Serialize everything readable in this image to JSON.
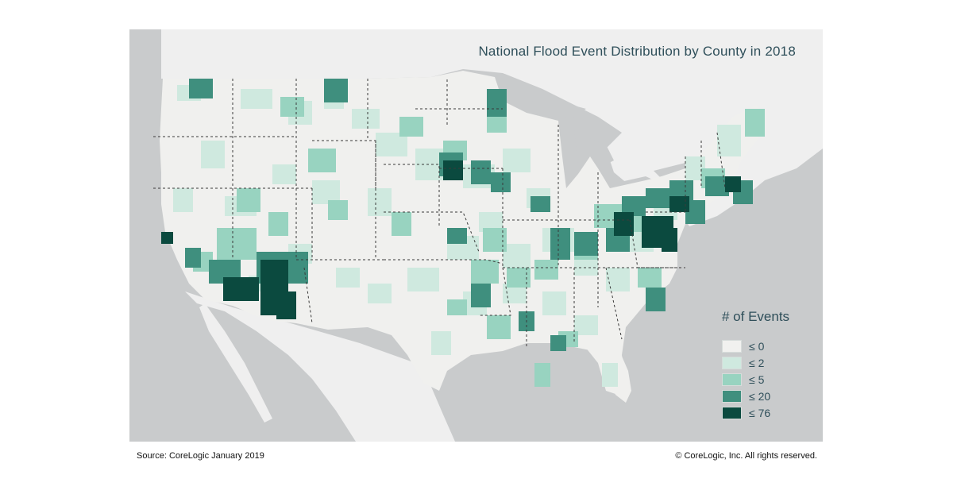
{
  "map": {
    "title": "National Flood Event Distribution by County in 2018",
    "colors": {
      "water": "#c9cbcc",
      "land_outside": "#efefef",
      "land_us": "#f0f0ee",
      "state_border": "#3a3a3a",
      "county_border": "#ffffff"
    }
  },
  "legend": {
    "title": "# of Events",
    "items": [
      {
        "label": "≤ 0",
        "color": "#f1f1ef"
      },
      {
        "label": "≤ 2",
        "color": "#cfe9df"
      },
      {
        "label": "≤ 5",
        "color": "#98d3c0"
      },
      {
        "label": "≤ 20",
        "color": "#3f8f7e"
      },
      {
        "label": "≤ 76",
        "color": "#0b4a3f"
      }
    ]
  },
  "footer": {
    "source": "Source: CoreLogic January 2019",
    "copyright": "© CoreLogic, Inc. All rights reserved."
  }
}
